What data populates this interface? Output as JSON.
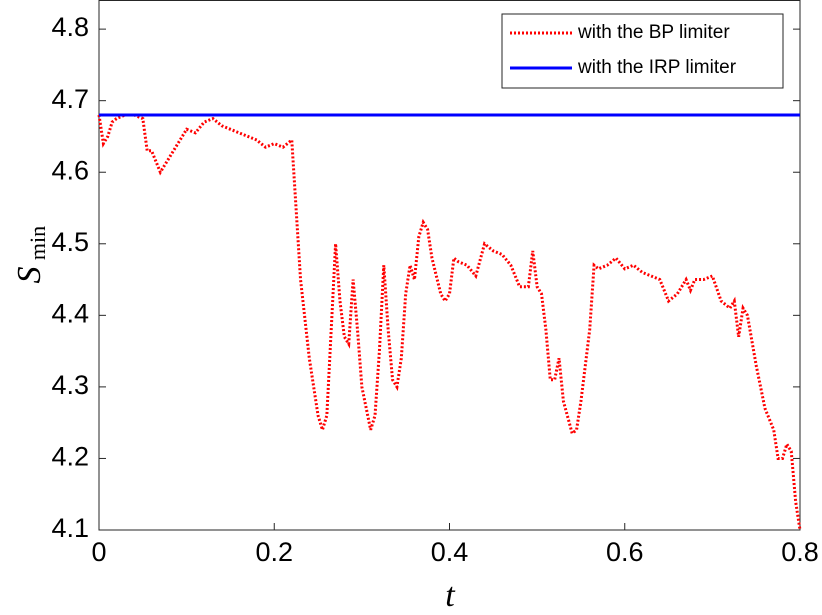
{
  "chart_data": {
    "type": "line",
    "xlabel": "t",
    "ylabel": {
      "main": "S",
      "sub": "min"
    },
    "xlim": [
      0,
      0.8
    ],
    "ylim": [
      4.1,
      4.84
    ],
    "xticks": [
      0,
      0.2,
      0.4,
      0.6,
      0.8
    ],
    "yticks": [
      4.1,
      4.2,
      4.3,
      4.4,
      4.5,
      4.6,
      4.7,
      4.8
    ],
    "legend": "upper right",
    "series": [
      {
        "name": "with the BP limiter",
        "color": "#ff0000",
        "style": "dotted",
        "x": [
          0,
          0.005,
          0.01,
          0.015,
          0.02,
          0.03,
          0.04,
          0.05,
          0.055,
          0.06,
          0.07,
          0.08,
          0.09,
          0.1,
          0.11,
          0.12,
          0.13,
          0.14,
          0.15,
          0.16,
          0.17,
          0.18,
          0.19,
          0.2,
          0.21,
          0.22,
          0.23,
          0.24,
          0.25,
          0.255,
          0.26,
          0.265,
          0.27,
          0.275,
          0.28,
          0.285,
          0.29,
          0.295,
          0.3,
          0.31,
          0.315,
          0.32,
          0.325,
          0.33,
          0.335,
          0.34,
          0.345,
          0.35,
          0.355,
          0.36,
          0.365,
          0.37,
          0.375,
          0.38,
          0.39,
          0.395,
          0.4,
          0.405,
          0.41,
          0.42,
          0.43,
          0.44,
          0.45,
          0.46,
          0.47,
          0.48,
          0.49,
          0.495,
          0.5,
          0.505,
          0.51,
          0.515,
          0.52,
          0.525,
          0.53,
          0.54,
          0.545,
          0.55,
          0.56,
          0.565,
          0.57,
          0.58,
          0.59,
          0.6,
          0.61,
          0.62,
          0.63,
          0.64,
          0.65,
          0.66,
          0.67,
          0.675,
          0.68,
          0.69,
          0.7,
          0.71,
          0.72,
          0.725,
          0.73,
          0.735,
          0.74,
          0.75,
          0.76,
          0.77,
          0.775,
          0.78,
          0.785,
          0.79,
          0.795,
          0.8
        ],
        "values": [
          4.68,
          4.64,
          4.65,
          4.67,
          4.675,
          4.68,
          4.68,
          4.675,
          4.63,
          4.63,
          4.6,
          4.62,
          4.64,
          4.66,
          4.655,
          4.67,
          4.675,
          4.665,
          4.66,
          4.655,
          4.65,
          4.645,
          4.635,
          4.64,
          4.635,
          4.645,
          4.45,
          4.34,
          4.26,
          4.24,
          4.26,
          4.38,
          4.5,
          4.42,
          4.37,
          4.36,
          4.45,
          4.38,
          4.3,
          4.24,
          4.26,
          4.35,
          4.47,
          4.38,
          4.31,
          4.3,
          4.34,
          4.43,
          4.47,
          4.45,
          4.51,
          4.53,
          4.52,
          4.48,
          4.43,
          4.42,
          4.43,
          4.48,
          4.475,
          4.47,
          4.455,
          4.5,
          4.49,
          4.485,
          4.47,
          4.44,
          4.44,
          4.49,
          4.44,
          4.43,
          4.38,
          4.31,
          4.31,
          4.34,
          4.28,
          4.235,
          4.24,
          4.28,
          4.38,
          4.47,
          4.465,
          4.47,
          4.48,
          4.465,
          4.47,
          4.46,
          4.455,
          4.45,
          4.42,
          4.43,
          4.45,
          4.435,
          4.45,
          4.45,
          4.455,
          4.42,
          4.41,
          4.42,
          4.37,
          4.41,
          4.4,
          4.33,
          4.27,
          4.24,
          4.2,
          4.2,
          4.22,
          4.21,
          4.14,
          4.1
        ]
      },
      {
        "name": "with the IRP limiter",
        "color": "#0000ff",
        "style": "solid",
        "x": [
          0,
          0.8
        ],
        "values": [
          4.68,
          4.68
        ]
      }
    ]
  }
}
